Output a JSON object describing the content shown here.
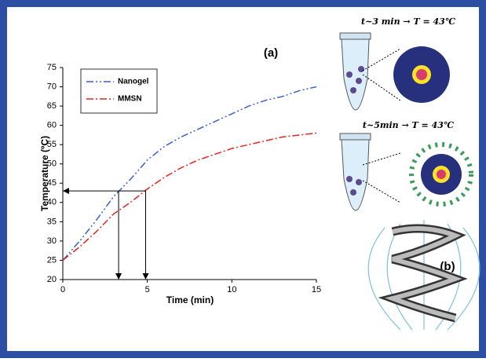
{
  "chart_data": {
    "type": "line",
    "xlabel": "Time (min)",
    "ylabel": "Temperature (ºC)",
    "x": [
      0,
      1,
      2,
      3,
      4,
      5,
      6,
      7,
      8,
      9,
      10,
      11,
      12,
      13,
      14,
      15
    ],
    "series": [
      {
        "name": "Nanogel",
        "color": "#3a5fcd",
        "values": [
          25,
          30,
          35.5,
          41.5,
          46,
          51,
          54.5,
          57,
          59,
          61,
          63,
          65,
          66.5,
          67.5,
          69,
          70
        ]
      },
      {
        "name": "MMSN",
        "color": "#e8231f",
        "values": [
          25,
          28.5,
          32.5,
          37,
          40,
          43.5,
          46.5,
          49,
          51,
          52.5,
          54,
          55,
          56,
          57,
          57.5,
          58
        ]
      }
    ],
    "xlim": [
      0,
      15
    ],
    "xticks": [
      0,
      5,
      10,
      15
    ],
    "ylim": [
      20,
      75
    ],
    "yticks": [
      20,
      25,
      30,
      35,
      40,
      45,
      50,
      55,
      60,
      65,
      70,
      75
    ],
    "reference": {
      "y": 43,
      "x": [
        3.3,
        4.9
      ]
    },
    "legend": "upper left",
    "annotations": {
      "panel_a": "(a)",
      "panel_b": "(b)",
      "note_1": "t~3 min → T = 43℃",
      "note_2": "t~5min → T = 43℃"
    }
  }
}
